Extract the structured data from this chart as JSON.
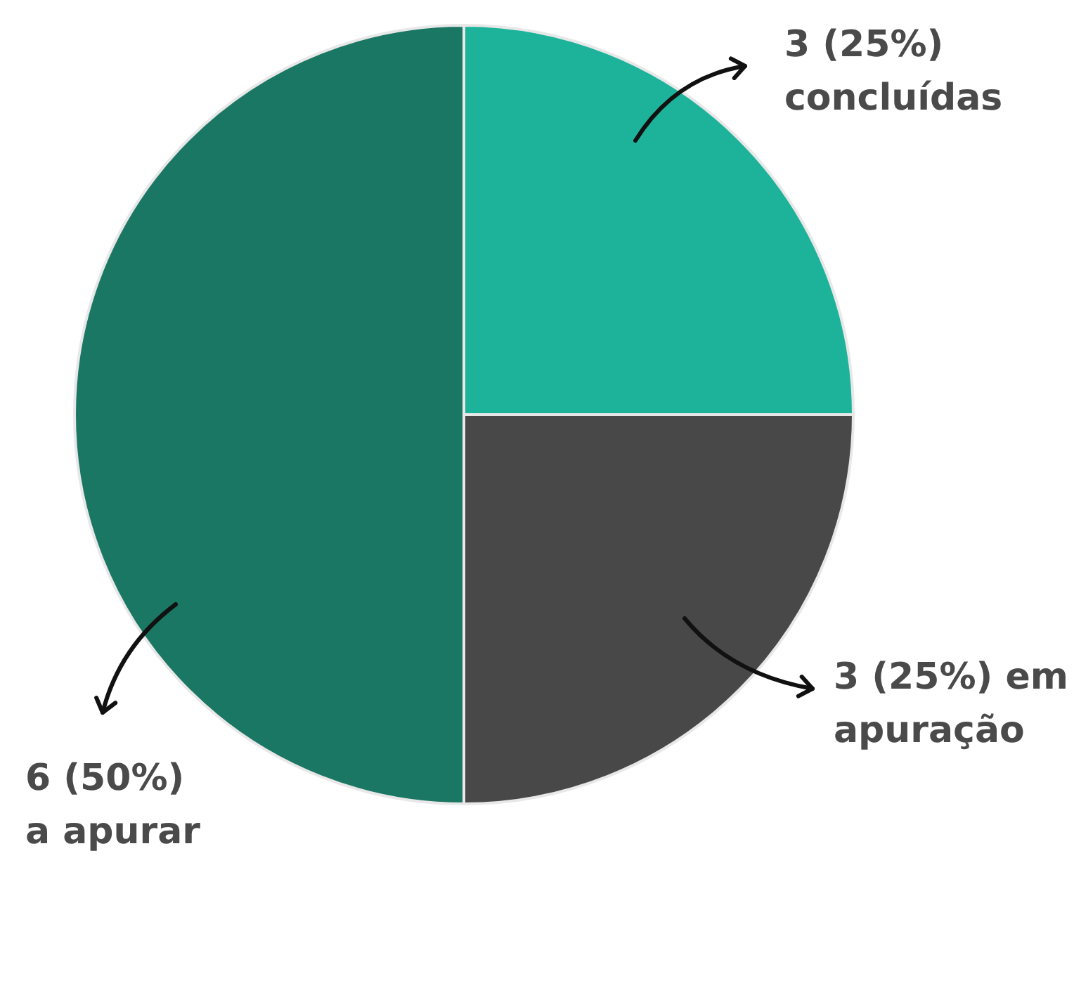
{
  "chart_data": {
    "type": "pie",
    "categories": [
      "concluídas",
      "em apuração",
      "a apurar"
    ],
    "values": [
      3,
      3,
      6
    ],
    "colors": [
      "#1db39a",
      "#484848",
      "#1a7763"
    ],
    "value_labels": [
      "3 (25%)",
      "3 (25%)",
      "6 (50%)"
    ]
  }
}
